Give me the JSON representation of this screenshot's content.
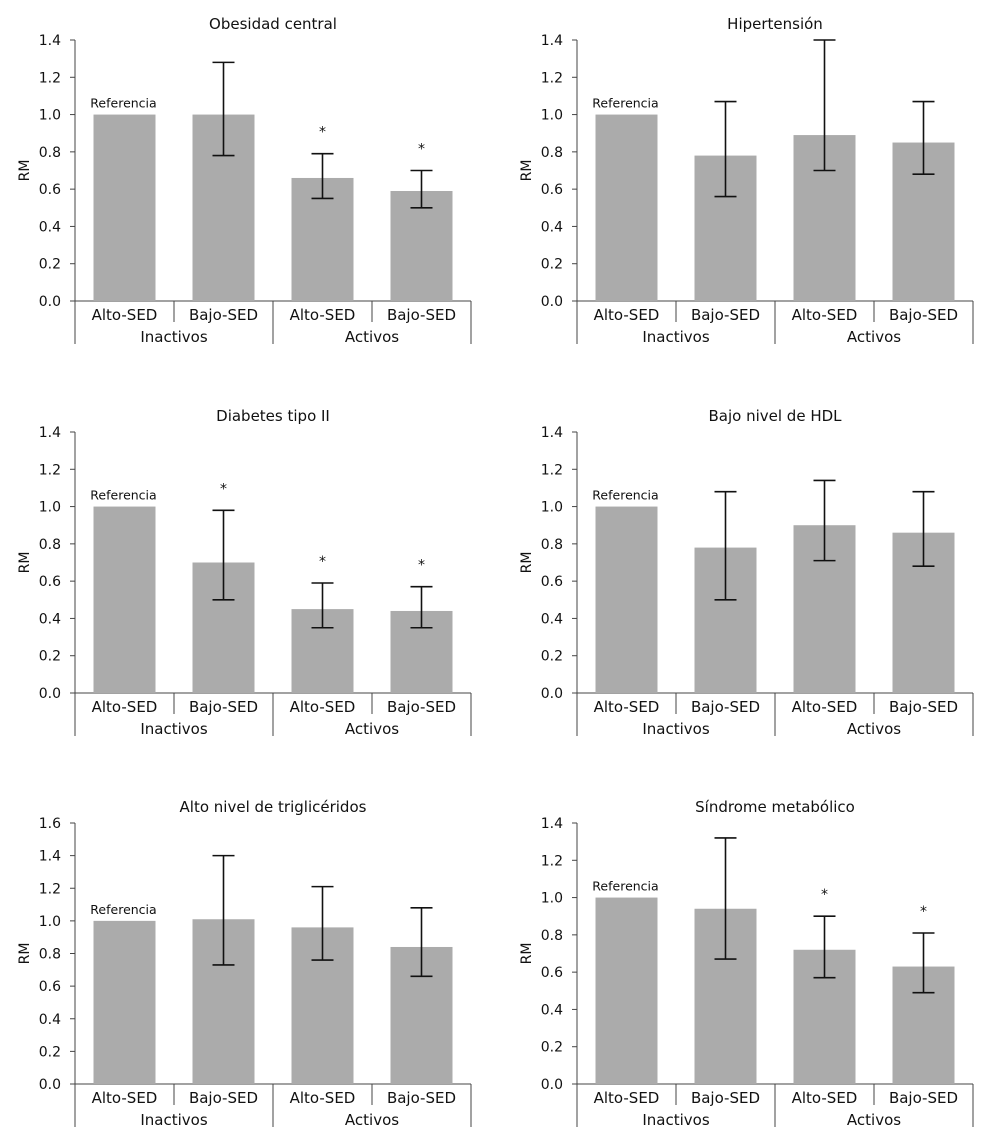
{
  "bar_color": "#ababab",
  "axis_color": "#444444",
  "chart_data": [
    {
      "type": "bar",
      "title": "Obesidad central",
      "ylabel": "RM",
      "ylim": [
        0,
        1.4
      ],
      "yticks": [
        "0.0",
        "0.2",
        "0.4",
        "0.6",
        "0.8",
        "1.0",
        "1.2",
        "1.4"
      ],
      "categories": [
        "Alto-SED",
        "Bajo-SED",
        "Alto-SED",
        "Bajo-SED"
      ],
      "groups": [
        {
          "label": "Inactivos",
          "categories": [
            0,
            1
          ]
        },
        {
          "label": "Activos",
          "categories": [
            2,
            3
          ]
        }
      ],
      "values": [
        1.0,
        1.0,
        0.66,
        0.59
      ],
      "ci_low": [
        null,
        0.78,
        0.55,
        0.5
      ],
      "ci_high": [
        null,
        1.28,
        0.79,
        0.7
      ],
      "significant": [
        false,
        false,
        true,
        true
      ],
      "significance_marker": "*",
      "reference_label": "Referencia"
    },
    {
      "type": "bar",
      "title": "Hipertensión",
      "ylabel": "RM",
      "ylim": [
        0,
        1.4
      ],
      "yticks": [
        "0.0",
        "0.2",
        "0.4",
        "0.6",
        "0.8",
        "1.0",
        "1.2",
        "1.4"
      ],
      "categories": [
        "Alto-SED",
        "Bajo-SED",
        "Alto-SED",
        "Bajo-SED"
      ],
      "groups": [
        {
          "label": "Inactivos",
          "categories": [
            0,
            1
          ]
        },
        {
          "label": "Activos",
          "categories": [
            2,
            3
          ]
        }
      ],
      "values": [
        1.0,
        0.78,
        0.89,
        0.85
      ],
      "ci_low": [
        null,
        0.56,
        0.7,
        0.68
      ],
      "ci_high": [
        null,
        1.07,
        1.4,
        1.07
      ],
      "significant": [
        false,
        false,
        false,
        false
      ],
      "significance_marker": "*",
      "reference_label": "Referencia"
    },
    {
      "type": "bar",
      "title": "Diabetes tipo II",
      "ylabel": "RM",
      "ylim": [
        0,
        1.4
      ],
      "yticks": [
        "0.0",
        "0.2",
        "0.4",
        "0.6",
        "0.8",
        "1.0",
        "1.2",
        "1.4"
      ],
      "categories": [
        "Alto-SED",
        "Bajo-SED",
        "Alto-SED",
        "Bajo-SED"
      ],
      "groups": [
        {
          "label": "Inactivos",
          "categories": [
            0,
            1
          ]
        },
        {
          "label": "Activos",
          "categories": [
            2,
            3
          ]
        }
      ],
      "values": [
        1.0,
        0.7,
        0.45,
        0.44
      ],
      "ci_low": [
        null,
        0.5,
        0.35,
        0.35
      ],
      "ci_high": [
        null,
        0.98,
        0.59,
        0.57
      ],
      "significant": [
        false,
        true,
        true,
        true
      ],
      "significance_marker": "*",
      "reference_label": "Referencia"
    },
    {
      "type": "bar",
      "title": "Bajo nivel de HDL",
      "ylabel": "RM",
      "ylim": [
        0,
        1.4
      ],
      "yticks": [
        "0.0",
        "0.2",
        "0.4",
        "0.6",
        "0.8",
        "1.0",
        "1.2",
        "1.4"
      ],
      "categories": [
        "Alto-SED",
        "Bajo-SED",
        "Alto-SED",
        "Bajo-SED"
      ],
      "groups": [
        {
          "label": "Inactivos",
          "categories": [
            0,
            1
          ]
        },
        {
          "label": "Activos",
          "categories": [
            2,
            3
          ]
        }
      ],
      "values": [
        1.0,
        0.78,
        0.9,
        0.86
      ],
      "ci_low": [
        null,
        0.5,
        0.71,
        0.68
      ],
      "ci_high": [
        null,
        1.08,
        1.14,
        1.08
      ],
      "significant": [
        false,
        false,
        false,
        false
      ],
      "significance_marker": "*",
      "reference_label": "Referencia"
    },
    {
      "type": "bar",
      "title": "Alto nivel de triglicéridos",
      "ylabel": "RM",
      "ylim": [
        0,
        1.6
      ],
      "yticks": [
        "0.0",
        "0.2",
        "0.4",
        "0.6",
        "0.8",
        "1.0",
        "1.2",
        "1.4",
        "1.6"
      ],
      "categories": [
        "Alto-SED",
        "Bajo-SED",
        "Alto-SED",
        "Bajo-SED"
      ],
      "groups": [
        {
          "label": "Inactivos",
          "categories": [
            0,
            1
          ]
        },
        {
          "label": "Activos",
          "categories": [
            2,
            3
          ]
        }
      ],
      "values": [
        1.0,
        1.01,
        0.96,
        0.84
      ],
      "ci_low": [
        null,
        0.73,
        0.76,
        0.66
      ],
      "ci_high": [
        null,
        1.4,
        1.21,
        1.08
      ],
      "significant": [
        false,
        false,
        false,
        false
      ],
      "significance_marker": "*",
      "reference_label": "Referencia"
    },
    {
      "type": "bar",
      "title": "Síndrome metabólico",
      "ylabel": "RM",
      "ylim": [
        0,
        1.4
      ],
      "yticks": [
        "0.0",
        "0.2",
        "0.4",
        "0.6",
        "0.8",
        "1.0",
        "1.2",
        "1.4"
      ],
      "categories": [
        "Alto-SED",
        "Bajo-SED",
        "Alto-SED",
        "Bajo-SED"
      ],
      "groups": [
        {
          "label": "Inactivos",
          "categories": [
            0,
            1
          ]
        },
        {
          "label": "Activos",
          "categories": [
            2,
            3
          ]
        }
      ],
      "values": [
        1.0,
        0.94,
        0.72,
        0.63
      ],
      "ci_low": [
        null,
        0.67,
        0.57,
        0.49
      ],
      "ci_high": [
        null,
        1.32,
        0.9,
        0.81
      ],
      "significant": [
        false,
        false,
        true,
        true
      ],
      "significance_marker": "*",
      "reference_label": "Referencia"
    }
  ]
}
